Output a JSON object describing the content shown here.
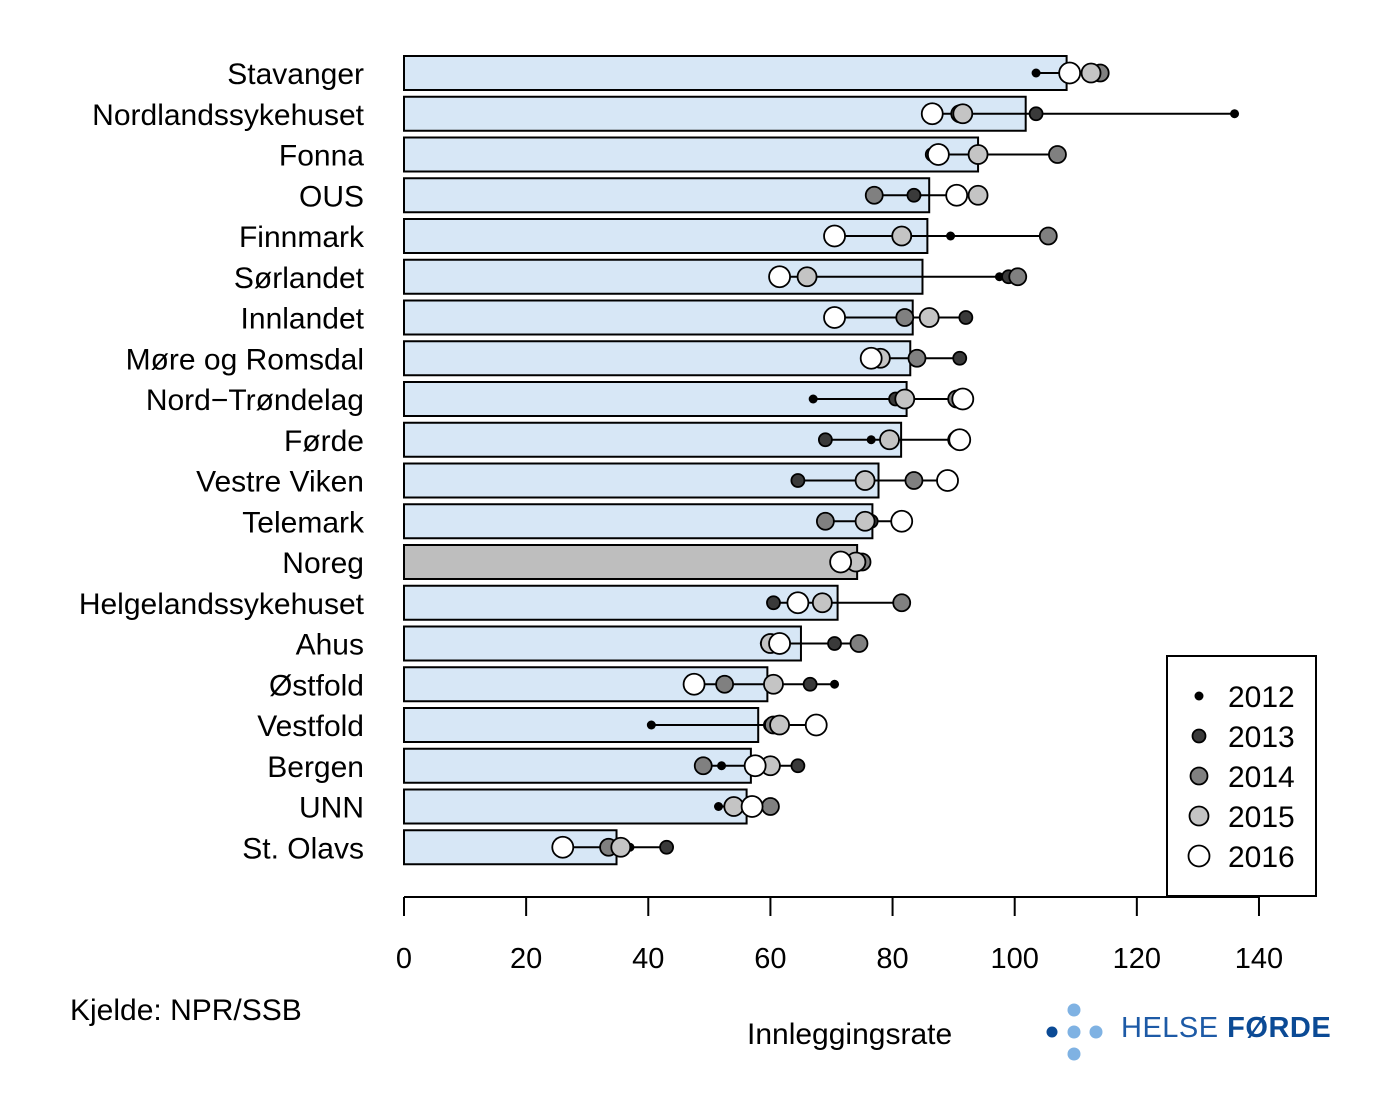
{
  "chart_data": {
    "type": "bar",
    "title": "",
    "xlabel": "Innleggingsrate",
    "ylabel": "",
    "xlim": [
      0,
      140
    ],
    "xticks": [
      0,
      20,
      40,
      60,
      80,
      100,
      120,
      140
    ],
    "grid": false,
    "legend_position": "bottom-right",
    "years": [
      "2012",
      "2013",
      "2014",
      "2015",
      "2016"
    ],
    "categories": [
      "Stavanger",
      "Nordlandssykehuset",
      "Fonna",
      "OUS",
      "Finnmark",
      "Sørlandet",
      "Innlandet",
      "Møre og Romsdal",
      "Nord−Trøndelag",
      "Førde",
      "Vestre Viken",
      "Telemark",
      "Noreg",
      "Helgelandssykehuset",
      "Ahus",
      "Østfold",
      "Vestfold",
      "Bergen",
      "UNN",
      "St. Olavs"
    ],
    "bar_values": [
      108.5,
      101.8,
      94.0,
      86.0,
      85.7,
      84.9,
      83.3,
      82.9,
      82.3,
      81.4,
      77.7,
      76.7,
      74.2,
      71.0,
      65.0,
      59.5,
      58.0,
      56.8,
      56.1,
      34.8
    ],
    "highlight_category": "Noreg",
    "series": [
      {
        "name": "2012",
        "values": [
          103.5,
          136.0,
          94.5,
          84.0,
          89.5,
          97.5,
          86.5,
          84.5,
          67.0,
          76.5,
          75.5,
          81.5,
          74.5,
          81.5,
          59.0,
          70.5,
          40.5,
          52.0,
          51.5,
          37.0
        ]
      },
      {
        "name": "2013",
        "values": [
          113.0,
          103.5,
          86.5,
          83.5,
          82.0,
          99.0,
          92.0,
          91.0,
          80.5,
          69.0,
          64.5,
          76.5,
          75.0,
          60.5,
          70.5,
          66.5,
          60.0,
          64.5,
          57.5,
          43.0
        ]
      },
      {
        "name": "2014",
        "values": [
          114.0,
          91.0,
          107.0,
          77.0,
          105.5,
          100.5,
          82.0,
          84.0,
          90.5,
          90.5,
          83.5,
          69.0,
          75.0,
          81.5,
          74.5,
          52.5,
          60.5,
          49.0,
          60.0,
          33.5
        ]
      },
      {
        "name": "2015",
        "values": [
          112.5,
          91.5,
          94.0,
          94.0,
          81.5,
          66.0,
          86.0,
          78.0,
          82.0,
          79.5,
          75.5,
          75.5,
          74.0,
          68.5,
          60.0,
          60.5,
          61.5,
          60.0,
          54.0,
          35.5
        ]
      },
      {
        "name": "2016",
        "values": [
          109.0,
          86.5,
          87.5,
          90.5,
          70.5,
          61.5,
          70.5,
          76.5,
          91.5,
          91.0,
          89.0,
          81.5,
          71.5,
          64.5,
          61.5,
          47.5,
          67.5,
          57.5,
          57.0,
          26.0
        ]
      }
    ]
  },
  "colors": {
    "bar_fill": "#d7e7f6",
    "bar_highlight": "#bebebe",
    "bar_stroke": "#000000",
    "point_2012": "#000000",
    "point_2013": "#3a3a3a",
    "point_2014": "#808080",
    "point_2015": "#c4c4c4",
    "point_2016": "#ffffff",
    "logo_light": "#7fb2e3",
    "logo_dark": "#0b4a95"
  },
  "footer": {
    "source": "Kjelde: NPR/SSB",
    "logo_word1": "HELSE",
    "logo_word2": "FØRDE"
  }
}
